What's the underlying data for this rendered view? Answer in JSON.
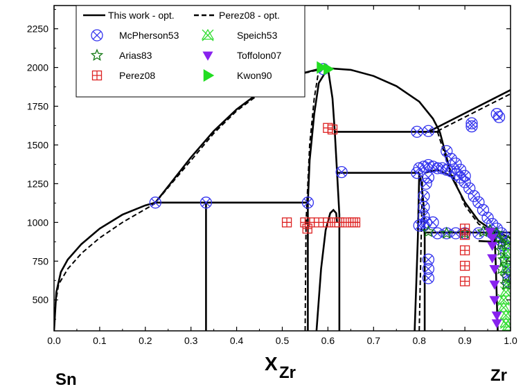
{
  "chart_data": {
    "type": "scatter",
    "title": "",
    "xlabel_main": "X",
    "xlabel_sub": "Zr",
    "end_label_left": "Sn",
    "end_label_right": "Zr",
    "xlim": [
      0.0,
      1.0
    ],
    "ylim": [
      300,
      2400
    ],
    "x_ticks": [
      0.0,
      0.1,
      0.2,
      0.3,
      0.4,
      0.5,
      0.6,
      0.7,
      0.8,
      0.9,
      1.0
    ],
    "x_tick_labels": [
      "0.0",
      "0.1",
      "0.2",
      "0.3",
      "0.4",
      "0.5",
      "0.6",
      "0.7",
      "0.8",
      "0.9",
      "1.0"
    ],
    "y_ticks": [
      500,
      750,
      1000,
      1250,
      1500,
      1750,
      2000,
      2250
    ],
    "y_tick_labels": [
      "500",
      "750",
      "1000",
      "1250",
      "1500",
      "1750",
      "2000",
      "2250"
    ],
    "legend_placement": "top-left",
    "legend": [
      {
        "label": "This work - opt.",
        "marker": "line-solid",
        "color": "#000000"
      },
      {
        "label": "Perez08 - opt.",
        "marker": "line-dashed",
        "color": "#000000"
      },
      {
        "label": "McPherson53",
        "marker": "circle-x",
        "color": "#3333ee"
      },
      {
        "label": "Speich53",
        "marker": "triangle-x",
        "color": "#33dd33"
      },
      {
        "label": "Arias83",
        "marker": "star",
        "color": "#117711"
      },
      {
        "label": "Toffolon07",
        "marker": "triangle-down",
        "color": "#8822ee"
      },
      {
        "label": "Perez08",
        "marker": "square-plus",
        "color": "#dd2222"
      },
      {
        "label": "Kwon90",
        "marker": "triangle-right",
        "color": "#22dd22"
      }
    ],
    "lines": [
      {
        "style": "solid",
        "points": [
          [
            0.0,
            300
          ],
          [
            0.005,
            550
          ],
          [
            0.015,
            680
          ],
          [
            0.03,
            760
          ],
          [
            0.06,
            860
          ],
          [
            0.1,
            960
          ],
          [
            0.15,
            1050
          ],
          [
            0.2,
            1110
          ],
          [
            0.222,
            1128
          ]
        ]
      },
      {
        "style": "solid",
        "points": [
          [
            0.222,
            1128
          ],
          [
            0.26,
            1270
          ],
          [
            0.3,
            1420
          ],
          [
            0.35,
            1590
          ],
          [
            0.4,
            1730
          ],
          [
            0.45,
            1840
          ],
          [
            0.5,
            1920
          ],
          [
            0.54,
            1960
          ],
          [
            0.58,
            1990
          ],
          [
            0.6,
            1995
          ],
          [
            0.65,
            1985
          ],
          [
            0.7,
            1945
          ],
          [
            0.75,
            1880
          ],
          [
            0.8,
            1780
          ],
          [
            0.83,
            1670
          ],
          [
            0.845,
            1585
          ]
        ]
      },
      {
        "style": "solid",
        "points": [
          [
            0.222,
            1128
          ],
          [
            0.556,
            1128
          ]
        ]
      },
      {
        "style": "solid",
        "points": [
          [
            0.333,
            300
          ],
          [
            0.333,
            1128
          ]
        ]
      },
      {
        "style": "solid",
        "points": [
          [
            0.556,
            300
          ],
          [
            0.556,
            1128
          ]
        ]
      },
      {
        "style": "solid",
        "points": [
          [
            0.556,
            1128
          ],
          [
            0.56,
            1400
          ],
          [
            0.57,
            1700
          ],
          [
            0.58,
            1900
          ],
          [
            0.6,
            1995
          ]
        ]
      },
      {
        "style": "solid",
        "points": [
          [
            0.6,
            1995
          ],
          [
            0.61,
            1800
          ],
          [
            0.615,
            1585
          ],
          [
            0.62,
            1320
          ],
          [
            0.625,
            1050
          ],
          [
            0.625,
            300
          ]
        ]
      },
      {
        "style": "solid",
        "points": [
          [
            0.615,
            1585
          ],
          [
            0.82,
            1585
          ]
        ]
      },
      {
        "style": "solid",
        "points": [
          [
            0.62,
            1320
          ],
          [
            0.8,
            1320
          ]
        ]
      },
      {
        "style": "solid",
        "points": [
          [
            0.575,
            300
          ],
          [
            0.585,
            700
          ],
          [
            0.595,
            950
          ],
          [
            0.605,
            1060
          ],
          [
            0.612,
            1080
          ],
          [
            0.618,
            1060
          ],
          [
            0.62,
            1000
          ]
        ]
      },
      {
        "style": "solid",
        "points": [
          [
            0.8,
            1585
          ],
          [
            0.845,
            1585
          ]
        ]
      },
      {
        "style": "solid",
        "points": [
          [
            0.82,
            1585
          ],
          [
            1.0,
            1855
          ]
        ]
      },
      {
        "style": "solid",
        "points": [
          [
            0.845,
            1585
          ],
          [
            0.86,
            1420
          ],
          [
            0.87,
            1300
          ],
          [
            0.9,
            1130
          ],
          [
            0.93,
            1010
          ],
          [
            0.96,
            950
          ],
          [
            1.0,
            900
          ]
        ]
      },
      {
        "style": "solid",
        "points": [
          [
            0.79,
            300
          ],
          [
            0.797,
            900
          ],
          [
            0.8,
            1320
          ]
        ]
      },
      {
        "style": "solid",
        "points": [
          [
            0.8,
            1320
          ],
          [
            0.805,
            1250
          ],
          [
            0.81,
            1100
          ],
          [
            0.812,
            900
          ],
          [
            0.812,
            300
          ]
        ]
      },
      {
        "style": "solid",
        "points": [
          [
            0.812,
            935
          ],
          [
            1.0,
            935
          ]
        ]
      },
      {
        "style": "solid",
        "points": [
          [
            0.812,
            1320
          ],
          [
            0.84,
            1340
          ],
          [
            0.87,
            1300
          ]
        ]
      },
      {
        "style": "solid",
        "points": [
          [
            0.965,
            935
          ],
          [
            0.968,
            700
          ],
          [
            0.972,
            300
          ]
        ]
      },
      {
        "style": "solid",
        "points": [
          [
            0.93,
            880
          ],
          [
            1.0,
            870
          ]
        ]
      },
      {
        "style": "dashed",
        "points": [
          [
            0.0,
            420
          ],
          [
            0.01,
            600
          ],
          [
            0.03,
            700
          ],
          [
            0.06,
            800
          ],
          [
            0.1,
            900
          ],
          [
            0.15,
            1000
          ],
          [
            0.22,
            1120
          ],
          [
            0.26,
            1260
          ],
          [
            0.3,
            1400
          ],
          [
            0.35,
            1575
          ],
          [
            0.4,
            1720
          ],
          [
            0.45,
            1830
          ],
          [
            0.5,
            1910
          ],
          [
            0.55,
            1965
          ],
          [
            0.58,
            1985
          ]
        ]
      },
      {
        "style": "dashed",
        "points": [
          [
            0.55,
            300
          ],
          [
            0.552,
            1000
          ],
          [
            0.56,
            1500
          ],
          [
            0.57,
            1800
          ],
          [
            0.58,
            1985
          ]
        ]
      },
      {
        "style": "dashed",
        "points": [
          [
            0.8,
            300
          ],
          [
            0.805,
            1000
          ],
          [
            0.807,
            1300
          ]
        ]
      },
      {
        "style": "dashed",
        "points": [
          [
            0.84,
            1590
          ],
          [
            1.0,
            1830
          ]
        ]
      },
      {
        "style": "dashed",
        "points": [
          [
            0.84,
            1585
          ],
          [
            0.86,
            1400
          ],
          [
            0.9,
            1110
          ],
          [
            0.93,
            990
          ],
          [
            0.96,
            940
          ]
        ]
      }
    ],
    "scatter": {
      "McPherson53": [
        [
          0.222,
          1128
        ],
        [
          0.333,
          1128
        ],
        [
          0.556,
          1128
        ],
        [
          0.59,
          1990
        ],
        [
          0.63,
          1325
        ],
        [
          0.795,
          1585
        ],
        [
          0.82,
          1590
        ],
        [
          0.915,
          1640
        ],
        [
          0.915,
          1620
        ],
        [
          0.97,
          1700
        ],
        [
          0.975,
          1680
        ],
        [
          0.795,
          1320
        ],
        [
          0.8,
          1350
        ],
        [
          0.81,
          1360
        ],
        [
          0.82,
          1370
        ],
        [
          0.83,
          1360
        ],
        [
          0.84,
          1350
        ],
        [
          0.85,
          1350
        ],
        [
          0.86,
          1340
        ],
        [
          0.87,
          1330
        ],
        [
          0.88,
          1310
        ],
        [
          0.89,
          1290
        ],
        [
          0.9,
          1260
        ],
        [
          0.91,
          1220
        ],
        [
          0.92,
          1170
        ],
        [
          0.93,
          1130
        ],
        [
          0.94,
          1080
        ],
        [
          0.95,
          1030
        ],
        [
          0.96,
          990
        ],
        [
          0.97,
          960
        ],
        [
          0.98,
          930
        ],
        [
          0.99,
          900
        ],
        [
          0.86,
          1460
        ],
        [
          0.87,
          1410
        ],
        [
          0.88,
          1380
        ],
        [
          0.89,
          1340
        ],
        [
          0.9,
          1300
        ],
        [
          0.82,
          1290
        ],
        [
          0.815,
          1250
        ],
        [
          0.81,
          1170
        ],
        [
          0.81,
          1100
        ],
        [
          0.81,
          1040
        ],
        [
          0.81,
          980
        ],
        [
          0.815,
          1000
        ],
        [
          0.83,
          1000
        ],
        [
          0.8,
          980
        ],
        [
          0.82,
          700
        ],
        [
          0.82,
          640
        ],
        [
          0.82,
          760
        ],
        [
          0.84,
          930
        ],
        [
          0.86,
          930
        ],
        [
          0.88,
          930
        ],
        [
          0.9,
          930
        ],
        [
          0.93,
          930
        ],
        [
          0.96,
          930
        ],
        [
          0.98,
          880
        ],
        [
          0.985,
          850
        ],
        [
          0.99,
          800
        ],
        [
          0.99,
          750
        ],
        [
          0.995,
          700
        ],
        [
          0.995,
          650
        ],
        [
          0.995,
          620
        ]
      ],
      "Speich53": [
        [
          0.985,
          500
        ],
        [
          0.985,
          450
        ],
        [
          0.99,
          400
        ],
        [
          0.99,
          350
        ],
        [
          0.995,
          330
        ],
        [
          0.99,
          550
        ],
        [
          0.995,
          600
        ],
        [
          0.99,
          700
        ],
        [
          0.99,
          750
        ],
        [
          0.99,
          800
        ],
        [
          0.995,
          850
        ]
      ],
      "Arias83": [
        [
          0.82,
          940
        ],
        [
          0.86,
          930
        ],
        [
          0.9,
          930
        ],
        [
          0.94,
          940
        ],
        [
          0.97,
          930
        ],
        [
          0.98,
          870
        ],
        [
          0.98,
          820
        ],
        [
          0.985,
          760
        ],
        [
          0.98,
          700
        ],
        [
          0.99,
          650
        ],
        [
          0.99,
          600
        ],
        [
          0.995,
          880
        ],
        [
          0.975,
          900
        ],
        [
          0.955,
          950
        ]
      ],
      "Toffolon07": [
        [
          0.955,
          940
        ],
        [
          0.96,
          900
        ],
        [
          0.96,
          850
        ],
        [
          0.96,
          770
        ],
        [
          0.965,
          700
        ],
        [
          0.965,
          600
        ],
        [
          0.965,
          500
        ],
        [
          0.97,
          400
        ],
        [
          0.97,
          350
        ]
      ],
      "Perez08": [
        [
          0.6,
          1610
        ],
        [
          0.61,
          1600
        ],
        [
          0.51,
          1000
        ],
        [
          0.55,
          1000
        ],
        [
          0.555,
          960
        ],
        [
          0.56,
          1000
        ],
        [
          0.58,
          1000
        ],
        [
          0.6,
          1000
        ],
        [
          0.615,
          1000
        ],
        [
          0.625,
          1000
        ],
        [
          0.64,
          1000
        ],
        [
          0.655,
          1000
        ],
        [
          0.66,
          1000
        ],
        [
          0.9,
          920
        ],
        [
          0.9,
          820
        ],
        [
          0.9,
          720
        ],
        [
          0.9,
          620
        ],
        [
          0.9,
          960
        ]
      ],
      "Kwon90": [
        [
          0.585,
          2000
        ],
        [
          0.6,
          1990
        ]
      ]
    }
  }
}
